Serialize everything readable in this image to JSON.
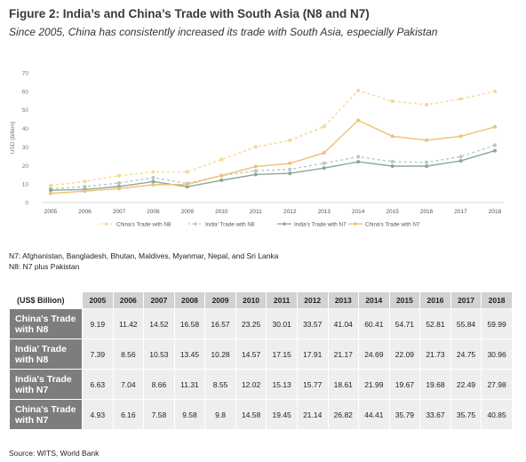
{
  "figure": {
    "title": "Figure 2: India’s and China’s Trade with South Asia (N8 and N7)",
    "subtitle": "Since 2005, China has consistently increased its trade with South Asia, especially Pakistan"
  },
  "notes": {
    "n7": "N7: Afghanistan, Bangladesh, Bhutan, Maldives, Myanmar, Nepal, and Sri Lanka",
    "n8": "N8: N7 plus Pakistan"
  },
  "source": "Source: WITS, World Bank",
  "chart_data": {
    "type": "line",
    "ylabel": "USD (billion)",
    "xlabel": "",
    "ylim": [
      0,
      70
    ],
    "yticks": [
      0,
      10,
      20,
      30,
      40,
      50,
      60,
      70
    ],
    "grid": false,
    "legend_position": "bottom",
    "categories": [
      "2005",
      "2006",
      "2007",
      "2008",
      "2009",
      "2010",
      "2011",
      "2012",
      "2013",
      "2014",
      "2015",
      "2016",
      "2017",
      "2018"
    ],
    "series": [
      {
        "name": "China's Trade with N8",
        "color": "#f5d890",
        "dash": "3,3",
        "marker": true,
        "values": [
          9.19,
          11.42,
          14.52,
          16.58,
          16.57,
          23.25,
          30.01,
          33.57,
          41.04,
          60.41,
          54.71,
          52.81,
          55.84,
          59.99
        ]
      },
      {
        "name": "India' Trade with N8",
        "color": "#b7c9c0",
        "dash": "3,3",
        "marker": true,
        "values": [
          7.39,
          8.56,
          10.53,
          13.45,
          10.28,
          14.57,
          17.15,
          17.91,
          21.17,
          24.69,
          22.09,
          21.73,
          24.75,
          30.96
        ]
      },
      {
        "name": "India's Trade with N7",
        "color": "#8aa79a",
        "dash": "",
        "marker": true,
        "values": [
          6.63,
          7.04,
          8.66,
          11.31,
          8.55,
          12.02,
          15.13,
          15.77,
          18.61,
          21.99,
          19.67,
          19.68,
          22.49,
          27.98
        ]
      },
      {
        "name": "China's Trade with N7",
        "color": "#f0c074",
        "dash": "",
        "marker": true,
        "values": [
          4.93,
          6.16,
          7.58,
          9.58,
          9.8,
          14.58,
          19.45,
          21.14,
          26.82,
          44.41,
          35.79,
          33.67,
          35.75,
          40.85
        ]
      }
    ]
  },
  "table": {
    "unit": "(US$ Billion)",
    "years": [
      "2005",
      "2006",
      "2007",
      "2008",
      "2009",
      "2010",
      "2011",
      "2012",
      "2013",
      "2014",
      "2015",
      "2016",
      "2017",
      "2018"
    ],
    "rows": [
      {
        "label_line1": "China's Trade",
        "label_line2": "with N8",
        "values": [
          "9.19",
          "11.42",
          "14.52",
          "16.58",
          "16.57",
          "23.25",
          "30.01",
          "33.57",
          "41.04",
          "60.41",
          "54.71",
          "52.81",
          "55.84",
          "59.99"
        ]
      },
      {
        "label_line1": "India' Trade",
        "label_line2": "with N8",
        "values": [
          "7.39",
          "8.56",
          "10.53",
          "13.45",
          "10.28",
          "14.57",
          "17.15",
          "17.91",
          "21.17",
          "24.69",
          "22.09",
          "21.73",
          "24.75",
          "30.96"
        ]
      },
      {
        "label_line1": "India's Trade",
        "label_line2": "with N7",
        "values": [
          "6.63",
          "7.04",
          "8.66",
          "11.31",
          "8.55",
          "12.02",
          "15.13",
          "15.77",
          "18.61",
          "21.99",
          "19.67",
          "19.68",
          "22.49",
          "27.98"
        ]
      },
      {
        "label_line1": "China's Trade",
        "label_line2": "with N7",
        "values": [
          "4.93",
          "6.16",
          "7.58",
          "9.58",
          "9.8",
          "14.58",
          "19.45",
          "21.14",
          "26.82",
          "44.41",
          "35.79",
          "33.67",
          "35.75",
          "40.85"
        ]
      }
    ]
  }
}
